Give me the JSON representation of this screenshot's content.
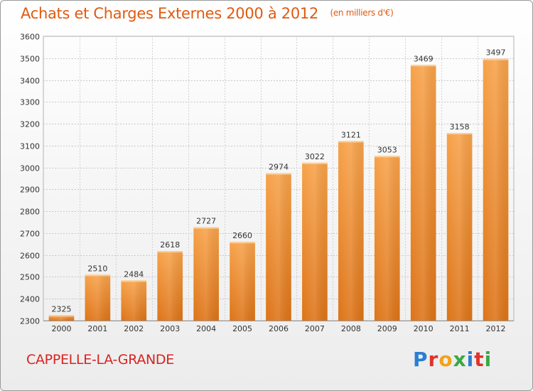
{
  "chart_data": {
    "type": "bar",
    "title": "Achats et Charges Externes 2000 à 2012",
    "subtitle": "(en milliers d'€)",
    "categories": [
      "2000",
      "2001",
      "2002",
      "2003",
      "2004",
      "2005",
      "2006",
      "2007",
      "2008",
      "2009",
      "2010",
      "2011",
      "2012"
    ],
    "values": [
      2325,
      2510,
      2484,
      2618,
      2727,
      2660,
      2974,
      3022,
      3121,
      3053,
      3469,
      3158,
      3497
    ],
    "ylim": [
      2300,
      3600
    ],
    "yticks": [
      2300,
      2400,
      2500,
      2600,
      2700,
      2800,
      2900,
      3000,
      3100,
      3200,
      3300,
      3400,
      3500,
      3600
    ],
    "grid": true,
    "bar_color": "#f29a3c",
    "bar_color_dark": "#e07a1c"
  },
  "footer": {
    "place_name": "CAPPELLE-LA-GRANDE",
    "logo_text": "Proxiti",
    "logo_colors": [
      "#2a7fd0",
      "#e0332b",
      "#f2a31a",
      "#3aa845",
      "#2a7fd0",
      "#e0332b",
      "#3aa845"
    ]
  }
}
